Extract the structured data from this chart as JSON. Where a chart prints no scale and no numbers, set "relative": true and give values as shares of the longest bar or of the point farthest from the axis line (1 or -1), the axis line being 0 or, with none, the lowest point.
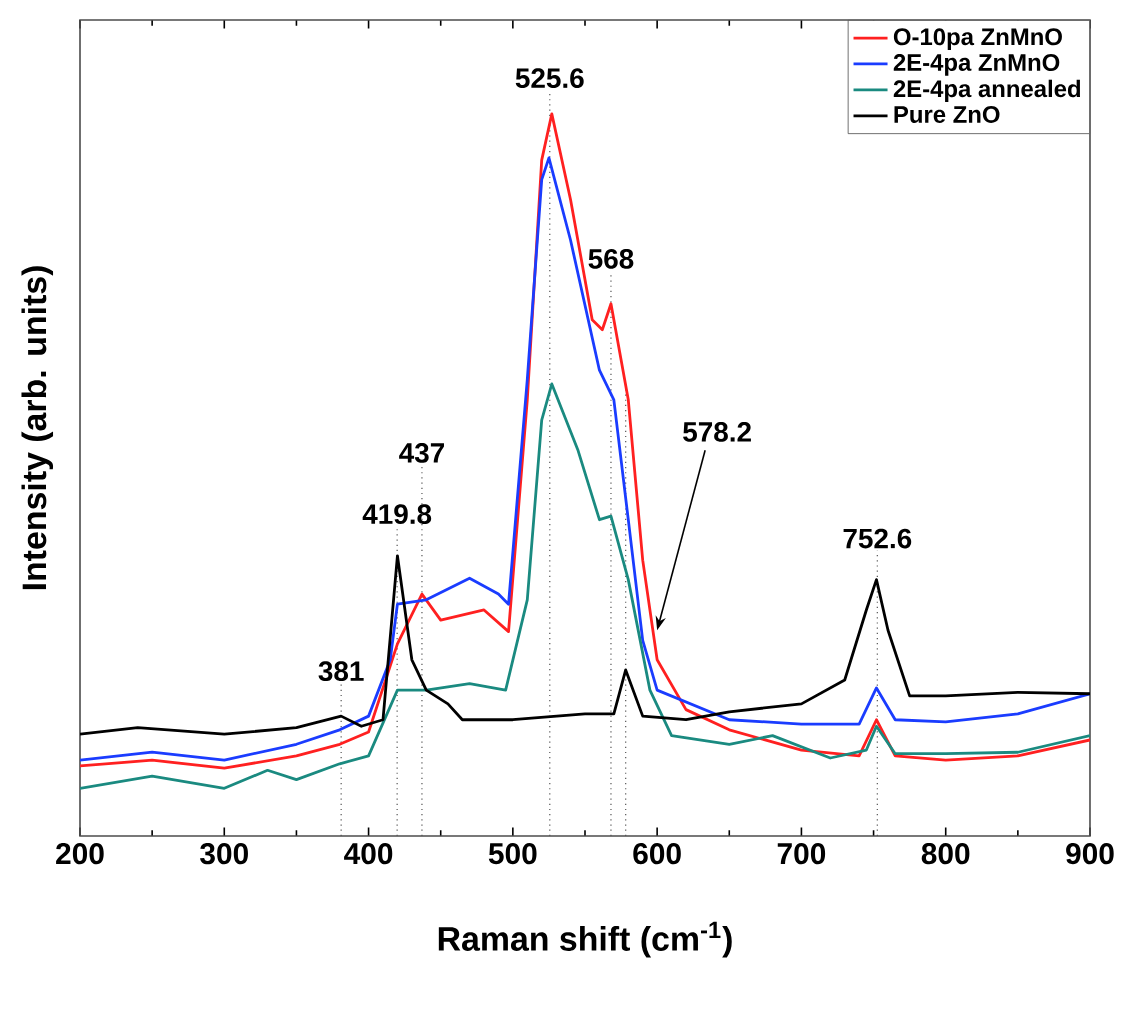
{
  "chart_data": {
    "type": "line",
    "relative": true,
    "xlabel": "Raman shift (cm$^{-1}$)",
    "ylabel": "Intensity (arb. units)",
    "xlim": [
      200,
      900
    ],
    "xticks": [
      200,
      300,
      400,
      500,
      600,
      700,
      800,
      900
    ],
    "tick_labels": "x",
    "legend": "top right",
    "grid": false,
    "marker": "none",
    "line_style": "solid",
    "series": [
      {
        "name": "O-10pa ZnMnO",
        "color": "#ff2020",
        "x": [
          200,
          250,
          300,
          350,
          380,
          400,
          420,
          437,
          450,
          480,
          497,
          510,
          520,
          527,
          540,
          555,
          562,
          568,
          580,
          590,
          600,
          620,
          650,
          700,
          740,
          752,
          765,
          800,
          850,
          900
        ],
        "values": [
          0.097,
          0.105,
          0.094,
          0.111,
          0.127,
          0.144,
          0.266,
          0.335,
          0.299,
          0.313,
          0.283,
          0.604,
          0.936,
          1.0,
          0.881,
          0.715,
          0.701,
          0.737,
          0.604,
          0.382,
          0.244,
          0.175,
          0.147,
          0.119,
          0.111,
          0.161,
          0.111,
          0.105,
          0.111,
          0.133
        ]
      },
      {
        "name": "2E-4pa ZnMnO",
        "color": "#1a3cff",
        "x": [
          200,
          250,
          300,
          350,
          380,
          400,
          415,
          420,
          440,
          470,
          490,
          497,
          510,
          520,
          525,
          540,
          560,
          570,
          580,
          590,
          600,
          650,
          700,
          740,
          752,
          765,
          800,
          850,
          900
        ],
        "values": [
          0.105,
          0.116,
          0.105,
          0.127,
          0.147,
          0.166,
          0.244,
          0.321,
          0.327,
          0.357,
          0.335,
          0.321,
          0.632,
          0.909,
          0.939,
          0.825,
          0.645,
          0.604,
          0.438,
          0.271,
          0.202,
          0.161,
          0.155,
          0.155,
          0.205,
          0.161,
          0.158,
          0.169,
          0.197
        ]
      },
      {
        "name": "2E-4pa annealed",
        "color": "#1a8a80",
        "x": [
          200,
          250,
          300,
          330,
          350,
          380,
          400,
          420,
          440,
          470,
          495,
          510,
          520,
          527,
          545,
          560,
          568,
          580,
          595,
          610,
          650,
          680,
          720,
          745,
          752,
          765,
          800,
          850,
          900
        ],
        "values": [
          0.066,
          0.083,
          0.066,
          0.091,
          0.078,
          0.1,
          0.111,
          0.202,
          0.202,
          0.211,
          0.202,
          0.327,
          0.576,
          0.626,
          0.535,
          0.438,
          0.443,
          0.355,
          0.202,
          0.139,
          0.127,
          0.139,
          0.108,
          0.119,
          0.152,
          0.114,
          0.114,
          0.116,
          0.139
        ]
      },
      {
        "name": "Pure ZnO",
        "color": "#000000",
        "x": [
          200,
          240,
          300,
          350,
          381,
          395,
          410,
          420,
          430,
          440,
          455,
          465,
          500,
          550,
          570,
          578.2,
          590,
          620,
          650,
          700,
          730,
          745,
          752,
          760,
          775,
          800,
          850,
          900
        ],
        "values": [
          0.141,
          0.15,
          0.141,
          0.15,
          0.166,
          0.152,
          0.161,
          0.388,
          0.244,
          0.202,
          0.183,
          0.161,
          0.161,
          0.169,
          0.169,
          0.23,
          0.166,
          0.161,
          0.172,
          0.183,
          0.216,
          0.313,
          0.355,
          0.285,
          0.194,
          0.194,
          0.199,
          0.197
        ]
      }
    ],
    "ref_lines": [
      {
        "axis": "x",
        "value": 381,
        "label": "381",
        "color": "#555555",
        "line_style": "dotted"
      },
      {
        "axis": "x",
        "value": 419.8,
        "label": "419.8",
        "color": "#555555",
        "line_style": "dotted"
      },
      {
        "axis": "x",
        "value": 437,
        "label": "437",
        "color": "#555555",
        "line_style": "dotted"
      },
      {
        "axis": "x",
        "value": 525.6,
        "label": "525.6",
        "color": "#555555",
        "line_style": "dotted"
      },
      {
        "axis": "x",
        "value": 568,
        "label": "568",
        "color": "#555555",
        "line_style": "dotted"
      },
      {
        "axis": "x",
        "value": 578.2,
        "color": "#555555",
        "line_style": "dotted"
      },
      {
        "axis": "x",
        "value": 752.6,
        "label": "752.6",
        "color": "#555555",
        "line_style": "dotted"
      }
    ],
    "annotations": [
      {
        "text": "578.2",
        "x": 600,
        "y": 0.285
      }
    ]
  }
}
